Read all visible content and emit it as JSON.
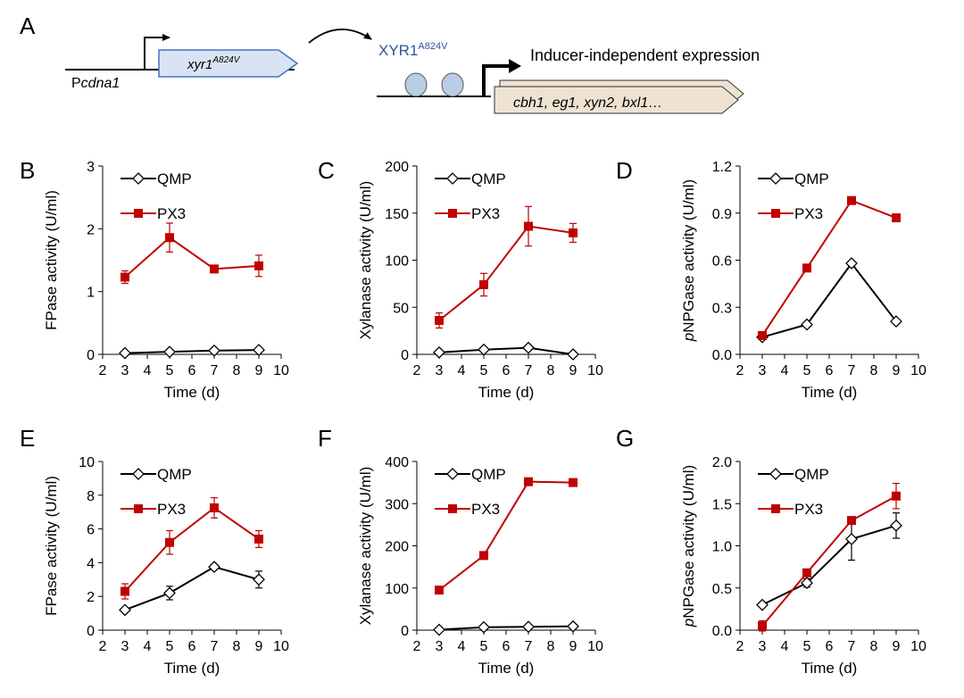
{
  "schematic": {
    "panel_letter": "A",
    "promoter_prefix": "P",
    "promoter_italic": "cdna1",
    "gene_base": "xyr1",
    "gene_super": "A824V",
    "tf_base": "XYR1",
    "tf_super": "A824V",
    "expression_label": "Inducer-independent expression",
    "target_genes": "cbh1, eg1, xyn2, bxl1…"
  },
  "colors": {
    "qmp": "#000000",
    "px3": "#c00000",
    "gene_box_fill": "#dae3f3",
    "gene_box_stroke": "#4472c4",
    "target_box_fill": "#eee2d2",
    "tf_fill": "#b9cde5",
    "tf_text": "#2f5597"
  },
  "chart_data": [
    {
      "type": "line",
      "panel": "B",
      "xlabel": "Time (d)",
      "ylabel": "FPase activity  (U/ml)",
      "x_ticks": [
        2,
        3,
        4,
        5,
        6,
        7,
        8,
        9,
        10
      ],
      "xlim": [
        2,
        10
      ],
      "y_ticks": [
        0,
        1,
        2,
        3
      ],
      "y_tick_labels": [
        "0",
        "1",
        "2",
        "3"
      ],
      "ylim": [
        0,
        3
      ],
      "legend": "top-left",
      "series": [
        {
          "name": "QMP",
          "x": [
            3,
            5,
            7,
            9
          ],
          "values": [
            0.02,
            0.04,
            0.06,
            0.07
          ],
          "errors": [
            0,
            0,
            0,
            0
          ]
        },
        {
          "name": "PX3",
          "x": [
            3,
            5,
            7,
            9
          ],
          "values": [
            1.23,
            1.86,
            1.36,
            1.41
          ],
          "errors": [
            0.1,
            0.23,
            0.02,
            0.17
          ]
        }
      ]
    },
    {
      "type": "line",
      "panel": "C",
      "xlabel": "Time (d)",
      "ylabel": "Xylanase  activity  (U/ml)",
      "x_ticks": [
        2,
        3,
        4,
        5,
        6,
        7,
        8,
        9,
        10
      ],
      "xlim": [
        2,
        10
      ],
      "y_ticks": [
        0,
        50,
        100,
        150,
        200
      ],
      "y_tick_labels": [
        "0",
        "50",
        "100",
        "150",
        "200"
      ],
      "ylim": [
        0,
        200
      ],
      "legend": "top-left",
      "series": [
        {
          "name": "QMP",
          "x": [
            3,
            5,
            7,
            9
          ],
          "values": [
            2,
            5,
            7,
            0
          ],
          "errors": [
            0,
            0,
            0,
            0
          ]
        },
        {
          "name": "PX3",
          "x": [
            3,
            5,
            7,
            9
          ],
          "values": [
            36,
            74,
            136,
            129
          ],
          "errors": [
            8,
            12,
            21,
            10
          ]
        }
      ]
    },
    {
      "type": "line",
      "panel": "D",
      "xlabel": "Time (d)",
      "ylabel_italic": "p",
      "ylabel": "NPGase activity  (U/ml)",
      "x_ticks": [
        2,
        3,
        4,
        5,
        6,
        7,
        8,
        9,
        10
      ],
      "xlim": [
        2,
        10
      ],
      "y_ticks": [
        0,
        0.3,
        0.6,
        0.9,
        1.2
      ],
      "y_tick_labels": [
        "0.0",
        "0.3",
        "0.6",
        "0.9",
        "1.2"
      ],
      "ylim": [
        0,
        1.2
      ],
      "legend": "top-left",
      "series": [
        {
          "name": "QMP",
          "x": [
            3,
            5,
            7,
            9
          ],
          "values": [
            0.11,
            0.19,
            0.58,
            0.21
          ],
          "errors": [
            0,
            0,
            0,
            0
          ]
        },
        {
          "name": "PX3",
          "x": [
            3,
            5,
            7,
            9
          ],
          "values": [
            0.12,
            0.55,
            0.98,
            0.87
          ],
          "errors": [
            0,
            0,
            0,
            0
          ]
        }
      ]
    },
    {
      "type": "line",
      "panel": "E",
      "xlabel": "Time (d)",
      "ylabel": "FPase activity  (U/ml)",
      "x_ticks": [
        2,
        3,
        4,
        5,
        6,
        7,
        8,
        9,
        10
      ],
      "xlim": [
        2,
        10
      ],
      "y_ticks": [
        0,
        2,
        4,
        6,
        8,
        10
      ],
      "y_tick_labels": [
        "0",
        "2",
        "4",
        "6",
        "8",
        "10"
      ],
      "ylim": [
        0,
        10
      ],
      "legend": "top-left",
      "series": [
        {
          "name": "QMP",
          "x": [
            3,
            5,
            7,
            9
          ],
          "values": [
            1.2,
            2.2,
            3.75,
            3.0
          ],
          "errors": [
            0,
            0.4,
            0.15,
            0.5
          ]
        },
        {
          "name": "PX3",
          "x": [
            3,
            5,
            7,
            9
          ],
          "values": [
            2.3,
            5.2,
            7.25,
            5.4
          ],
          "errors": [
            0.45,
            0.7,
            0.6,
            0.5
          ]
        }
      ]
    },
    {
      "type": "line",
      "panel": "F",
      "xlabel": "Time (d)",
      "ylabel": "Xylanase  activity  (U/ml)",
      "x_ticks": [
        2,
        3,
        4,
        5,
        6,
        7,
        8,
        9,
        10
      ],
      "xlim": [
        2,
        10
      ],
      "y_ticks": [
        0,
        100,
        200,
        300,
        400
      ],
      "y_tick_labels": [
        "0",
        "100",
        "200",
        "300",
        "400"
      ],
      "ylim": [
        0,
        400
      ],
      "legend": "top-left",
      "series": [
        {
          "name": "QMP",
          "x": [
            3,
            5,
            7,
            9
          ],
          "values": [
            1,
            7,
            8,
            9
          ],
          "errors": [
            0,
            0,
            0,
            0
          ]
        },
        {
          "name": "PX3",
          "x": [
            3,
            5,
            7,
            9
          ],
          "values": [
            95,
            177,
            352,
            350
          ],
          "errors": [
            0,
            0,
            8,
            0
          ]
        }
      ]
    },
    {
      "type": "line",
      "panel": "G",
      "xlabel": "Time (d)",
      "ylabel_italic": "p",
      "ylabel": "NPGase activity  (U/ml)",
      "x_ticks": [
        2,
        3,
        4,
        5,
        6,
        7,
        8,
        9,
        10
      ],
      "xlim": [
        2,
        10
      ],
      "y_ticks": [
        0,
        0.5,
        1,
        1.5,
        2
      ],
      "y_tick_labels": [
        "0.0",
        "0.5",
        "1.0",
        "1.5",
        "2.0"
      ],
      "ylim": [
        0,
        2
      ],
      "legend": "top-left",
      "series": [
        {
          "name": "QMP",
          "x": [
            3,
            5,
            7,
            9
          ],
          "values": [
            0.3,
            0.56,
            1.08,
            1.24
          ],
          "errors": [
            0,
            0.05,
            0.25,
            0.15
          ]
        },
        {
          "name": "PX3",
          "x": [
            3,
            5,
            7,
            9
          ],
          "values": [
            0.05,
            0.68,
            1.3,
            1.59
          ],
          "errors": [
            0.06,
            0,
            0,
            0.15
          ]
        }
      ]
    }
  ]
}
